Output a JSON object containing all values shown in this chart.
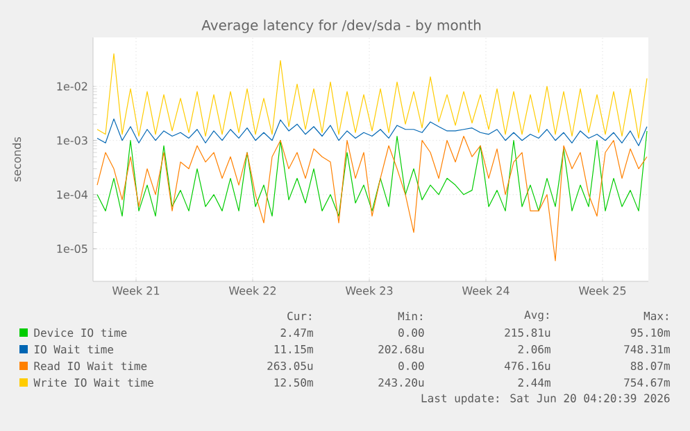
{
  "chart_data": {
    "type": "line",
    "title": "Average latency for /dev/sda - by month",
    "ylabel": "seconds",
    "log": "y",
    "grid": true,
    "legend": "bottom",
    "xlim": [
      "2026-05-17T20:00",
      "2026-06-20T04:00"
    ],
    "ylim": [
      2.5e-06,
      0.08
    ],
    "xticks": [
      {
        "value": "2026-05-20T10:00",
        "label": "Week 21"
      },
      {
        "value": "2026-05-27T10:00",
        "label": "Week 22"
      },
      {
        "value": "2026-06-03T10:00",
        "label": "Week 23"
      },
      {
        "value": "2026-06-10T10:00",
        "label": "Week 24"
      },
      {
        "value": "2026-06-17T10:00",
        "label": "Week 25"
      }
    ],
    "yticks": [
      {
        "value": 1e-05,
        "label": "1e-05"
      },
      {
        "value": 0.0001,
        "label": "1e-04"
      },
      {
        "value": 0.001,
        "label": "1e-03"
      },
      {
        "value": 0.01,
        "label": "1e-02"
      }
    ],
    "x": [
      "2026-05-18T02:00",
      "2026-05-18T14:00",
      "2026-05-19T02:00",
      "2026-05-19T14:00",
      "2026-05-20T02:00",
      "2026-05-20T14:00",
      "2026-05-21T02:00",
      "2026-05-21T14:00",
      "2026-05-22T02:00",
      "2026-05-22T14:00",
      "2026-05-23T02:00",
      "2026-05-23T14:00",
      "2026-05-24T02:00",
      "2026-05-24T14:00",
      "2026-05-25T02:00",
      "2026-05-25T14:00",
      "2026-05-26T02:00",
      "2026-05-26T14:00",
      "2026-05-27T02:00",
      "2026-05-27T14:00",
      "2026-05-28T02:00",
      "2026-05-28T14:00",
      "2026-05-29T02:00",
      "2026-05-29T14:00",
      "2026-05-30T02:00",
      "2026-05-30T14:00",
      "2026-05-31T02:00",
      "2026-05-31T14:00",
      "2026-06-01T02:00",
      "2026-06-01T14:00",
      "2026-06-02T02:00",
      "2026-06-02T14:00",
      "2026-06-03T02:00",
      "2026-06-03T14:00",
      "2026-06-04T02:00",
      "2026-06-04T14:00",
      "2026-06-05T02:00",
      "2026-06-05T14:00",
      "2026-06-06T02:00",
      "2026-06-06T14:00",
      "2026-06-07T02:00",
      "2026-06-07T14:00",
      "2026-06-08T02:00",
      "2026-06-08T14:00",
      "2026-06-09T02:00",
      "2026-06-09T14:00",
      "2026-06-10T02:00",
      "2026-06-10T14:00",
      "2026-06-11T02:00",
      "2026-06-11T14:00",
      "2026-06-12T02:00",
      "2026-06-12T14:00",
      "2026-06-13T02:00",
      "2026-06-13T14:00",
      "2026-06-14T02:00",
      "2026-06-14T14:00",
      "2026-06-15T02:00",
      "2026-06-15T14:00",
      "2026-06-16T02:00",
      "2026-06-16T14:00",
      "2026-06-17T02:00",
      "2026-06-17T14:00",
      "2026-06-18T02:00",
      "2026-06-18T14:00",
      "2026-06-19T02:00",
      "2026-06-19T14:00",
      "2026-06-20T02:00"
    ],
    "series": [
      {
        "name": "Device IO time",
        "color": "#00cc00",
        "values": [
          0.0001,
          5e-05,
          0.0002,
          4e-05,
          0.001,
          5e-05,
          0.00015,
          4e-05,
          0.0008,
          6e-05,
          0.00012,
          5e-05,
          0.0003,
          6e-05,
          0.0001,
          5e-05,
          0.0002,
          5e-05,
          0.0006,
          6e-05,
          0.00015,
          4e-05,
          0.001,
          8e-05,
          0.0002,
          7e-05,
          0.0003,
          5e-05,
          0.0001,
          4e-05,
          0.0006,
          7e-05,
          0.00015,
          5e-05,
          0.0002,
          6e-05,
          0.0012,
          0.0001,
          0.0003,
          8e-05,
          0.00015,
          0.0001,
          0.0002,
          0.00015,
          0.0001,
          0.00012,
          0.0008,
          6e-05,
          0.00012,
          5e-05,
          0.001,
          6e-05,
          0.00015,
          5e-05,
          0.0002,
          6e-05,
          0.0007,
          5e-05,
          0.00015,
          6e-05,
          0.001,
          5e-05,
          0.0002,
          6e-05,
          0.00012,
          5e-05,
          0.0015
        ]
      },
      {
        "name": "IO Wait time",
        "color": "#0066b3",
        "values": [
          0.0011,
          0.0009,
          0.0025,
          0.001,
          0.0018,
          0.0009,
          0.0016,
          0.001,
          0.0015,
          0.0012,
          0.0014,
          0.0011,
          0.0016,
          0.0009,
          0.0015,
          0.001,
          0.0016,
          0.0011,
          0.0017,
          0.001,
          0.0014,
          0.001,
          0.0024,
          0.0015,
          0.002,
          0.0013,
          0.0018,
          0.0012,
          0.0019,
          0.001,
          0.0015,
          0.0011,
          0.0014,
          0.0012,
          0.0016,
          0.0011,
          0.0019,
          0.0016,
          0.0016,
          0.0014,
          0.0022,
          0.0018,
          0.0015,
          0.0015,
          0.0016,
          0.0017,
          0.0014,
          0.0013,
          0.0016,
          0.001,
          0.0014,
          0.001,
          0.0013,
          0.0011,
          0.0016,
          0.001,
          0.0014,
          0.0009,
          0.0015,
          0.0011,
          0.0013,
          0.001,
          0.0014,
          0.0009,
          0.0015,
          0.0008,
          0.0018
        ]
      },
      {
        "name": "Read IO Wait time",
        "color": "#ff8000",
        "values": [
          0.00015,
          0.0006,
          0.0003,
          8e-05,
          0.0005,
          6e-05,
          0.0003,
          0.0001,
          0.0006,
          5e-05,
          0.0004,
          0.0003,
          0.0008,
          0.0004,
          0.0006,
          0.0002,
          0.0005,
          0.00015,
          0.0006,
          0.0001,
          3e-05,
          0.0005,
          0.001,
          0.0003,
          0.0006,
          0.0002,
          0.0007,
          0.0005,
          0.0004,
          3e-05,
          0.001,
          0.0002,
          0.0006,
          4e-05,
          0.0002,
          0.0008,
          0.0003,
          0.0001,
          2e-05,
          0.001,
          0.0006,
          0.0002,
          0.001,
          0.0004,
          0.0012,
          0.0005,
          0.0008,
          0.0002,
          0.0007,
          0.0001,
          0.0004,
          0.0006,
          5e-05,
          5e-05,
          0.0001,
          6e-06,
          0.0008,
          0.0003,
          0.0006,
          0.0001,
          4e-05,
          0.0006,
          0.001,
          0.0002,
          0.0007,
          0.0003,
          0.0005
        ]
      },
      {
        "name": "Write IO Wait time",
        "color": "#ffcc00",
        "values": [
          0.0016,
          0.0013,
          0.04,
          0.0013,
          0.009,
          0.0012,
          0.008,
          0.0013,
          0.007,
          0.0015,
          0.006,
          0.0014,
          0.008,
          0.0012,
          0.007,
          0.0013,
          0.008,
          0.0014,
          0.009,
          0.0013,
          0.006,
          0.0013,
          0.03,
          0.0018,
          0.011,
          0.0016,
          0.009,
          0.0014,
          0.012,
          0.0013,
          0.008,
          0.0014,
          0.007,
          0.0015,
          0.009,
          0.0014,
          0.012,
          0.002,
          0.008,
          0.0017,
          0.015,
          0.0022,
          0.007,
          0.0019,
          0.008,
          0.0021,
          0.007,
          0.0016,
          0.009,
          0.0013,
          0.008,
          0.0013,
          0.007,
          0.0014,
          0.01,
          0.0013,
          0.008,
          0.0012,
          0.009,
          0.0014,
          0.007,
          0.0013,
          0.008,
          0.0012,
          0.009,
          0.0011,
          0.014
        ]
      }
    ],
    "annotations": [
      "Cur:",
      "Min:",
      "Avg:",
      "Max:",
      "2.47m",
      "0.00",
      "215.81u",
      "95.10m",
      "11.15m",
      "202.68u",
      "2.06m",
      "748.31m",
      "263.05u",
      "0.00",
      "476.16u",
      "88.07m",
      "12.50m",
      "243.20u",
      "2.44m",
      "754.67m",
      "Last update: Sat Jun 20 04:20:39 2026"
    ]
  }
}
